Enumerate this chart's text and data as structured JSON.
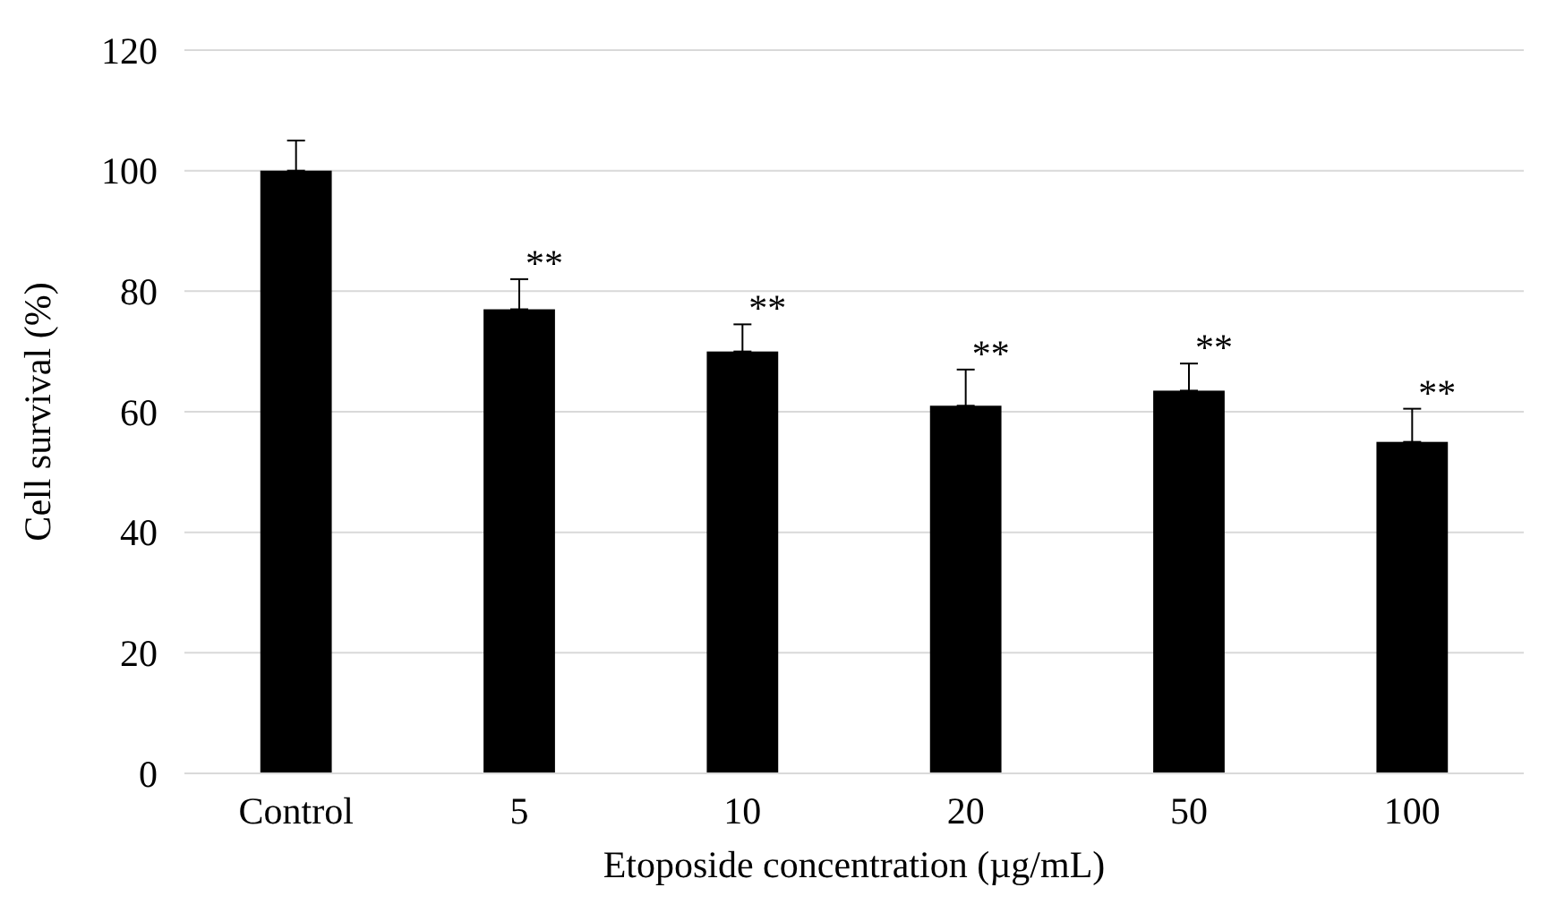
{
  "chart_data": {
    "type": "bar",
    "xlabel": "Etoposide concentration (µg/mL)",
    "ylabel": "Cell survival (%)",
    "categories": [
      "Control",
      "5",
      "10",
      "20",
      "50",
      "100"
    ],
    "values": [
      100,
      77,
      70,
      61,
      63.5,
      55
    ],
    "errors": [
      [
        100,
        105
      ],
      [
        77,
        82
      ],
      [
        70,
        74.5
      ],
      [
        61,
        67
      ],
      [
        63.5,
        68
      ],
      [
        55,
        60.5
      ]
    ],
    "color": "#000000",
    "ylim": [
      0,
      120
    ],
    "yticks": [
      0,
      20,
      40,
      60,
      80,
      100,
      120
    ],
    "grid": "y",
    "annotations": [
      {
        "text": "**",
        "x": "5",
        "y": 82
      },
      {
        "text": "**",
        "x": "10",
        "y": 74.5
      },
      {
        "text": "**",
        "x": "20",
        "y": 67
      },
      {
        "text": "**",
        "x": "50",
        "y": 68
      },
      {
        "text": "**",
        "x": "100",
        "y": 60.5
      }
    ]
  }
}
